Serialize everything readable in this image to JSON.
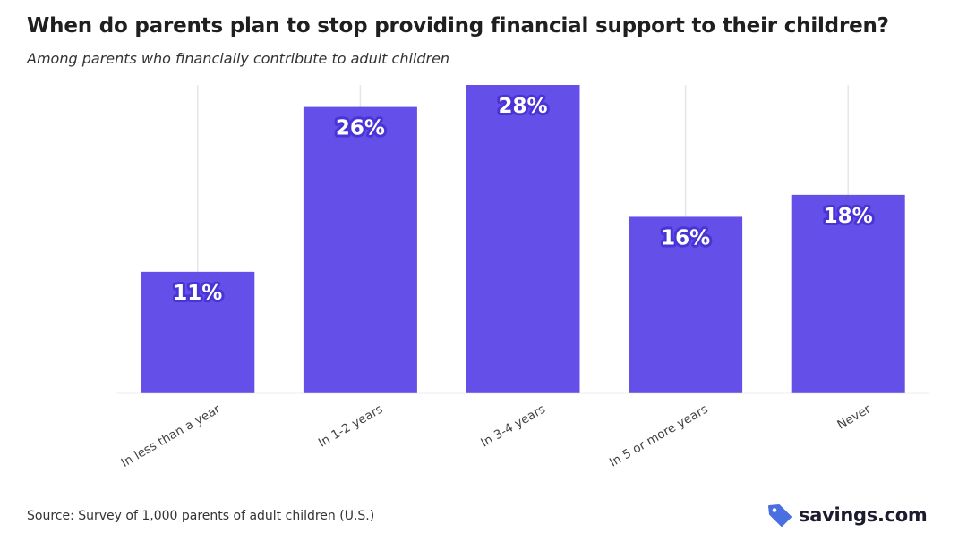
{
  "header": {
    "title": "When do parents plan to stop providing financial support to their children?",
    "subtitle": "Among parents who financially contribute to adult children"
  },
  "footer": {
    "source": "Source: Survey of 1,000 parents of adult children (U.S.)",
    "brand": "savings.com"
  },
  "colors": {
    "bar": "#6450E8",
    "label_bg": "#4B34D6",
    "grid": "#e6e6e6",
    "axis": "#d9d9d9",
    "logo_tag": "#4a6fe0"
  },
  "chart_data": {
    "type": "bar",
    "title": "When do parents plan to stop providing financial support to their children?",
    "subtitle": "Among parents who financially contribute to adult children",
    "categories": [
      "In less than a year",
      "In 1-2 years",
      "In 3-4 years",
      "In 5 or more years",
      "Never"
    ],
    "values": [
      11,
      26,
      28,
      16,
      18
    ],
    "value_labels": [
      "11%",
      "26%",
      "28%",
      "16%",
      "18%"
    ],
    "ylim": [
      0,
      28
    ],
    "grid": "vertical",
    "xlabel": "",
    "ylabel": ""
  }
}
